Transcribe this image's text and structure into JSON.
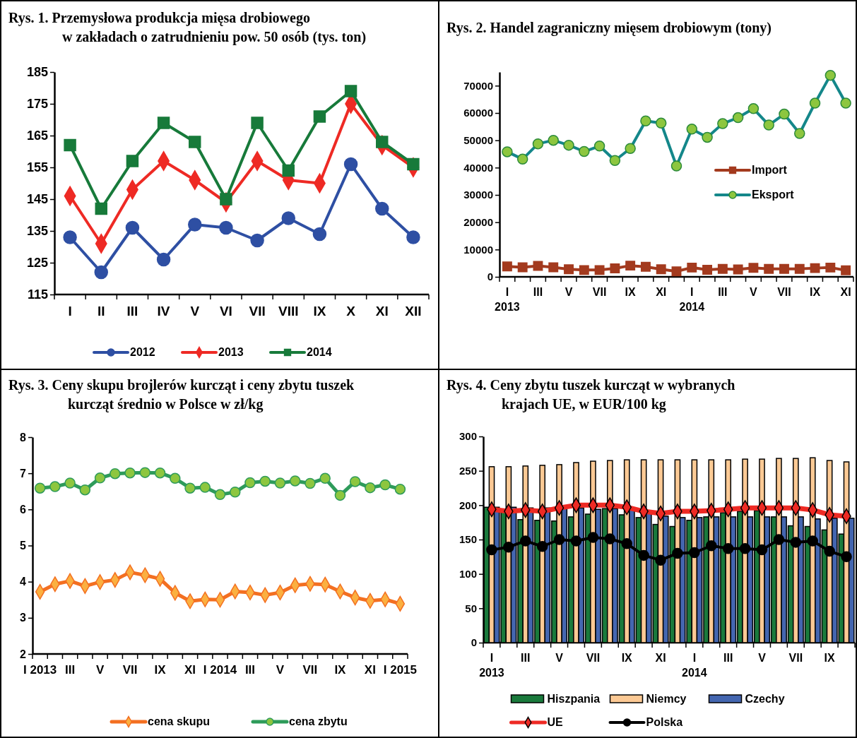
{
  "chart_data": [
    {
      "type": "line",
      "title": "Rys. 1. Przemysłowa produkcja mięsa drobiowego\nw zakładach o zatrudnieniu pow. 50 osób (tys. ton)",
      "categories": [
        "I",
        "II",
        "III",
        "IV",
        "V",
        "VI",
        "VII",
        "VIII",
        "IX",
        "X",
        "XI",
        "XII"
      ],
      "ylim": [
        115,
        185
      ],
      "yticks": [
        115,
        125,
        135,
        145,
        155,
        165,
        175,
        185
      ],
      "legend": "bottom",
      "series": [
        {
          "name": "2012",
          "color": "#2e4fa3",
          "marker": "circle",
          "values": [
            133,
            122,
            136,
            126,
            137,
            136,
            132,
            139,
            134,
            156,
            142,
            133
          ]
        },
        {
          "name": "2013",
          "color": "#ee2a24",
          "marker": "diamond",
          "values": [
            146,
            131,
            148,
            157,
            151,
            144,
            157,
            151,
            150,
            175,
            162,
            155
          ]
        },
        {
          "name": "2014",
          "color": "#177a3a",
          "marker": "square",
          "values": [
            162,
            142,
            157,
            169,
            163,
            145,
            169,
            154,
            171,
            179,
            163,
            156
          ]
        }
      ]
    },
    {
      "type": "line",
      "title": "Rys. 2. Handel zagraniczny mięsem drobiowym (tony)",
      "categories": [
        "I\n2013",
        null,
        "III",
        null,
        "V",
        null,
        "VII",
        null,
        "IX",
        null,
        "XI",
        null,
        "I\n2014",
        null,
        "III",
        null,
        "V",
        null,
        "VII",
        null,
        "IX",
        null,
        "XI"
      ],
      "ylim": [
        0,
        75000
      ],
      "yticks": [
        0,
        10000,
        20000,
        30000,
        40000,
        50000,
        60000,
        70000
      ],
      "legend": "right",
      "series": [
        {
          "name": "Import",
          "color": "#a33a1e",
          "marker": "square",
          "values": [
            3800,
            3500,
            4000,
            3500,
            2800,
            2500,
            2500,
            3100,
            4100,
            3700,
            2800,
            2000,
            3400,
            2600,
            2900,
            2700,
            3300,
            2900,
            2900,
            2900,
            3200,
            3400,
            2400
          ]
        },
        {
          "name": "Eksport",
          "color": "#14878a",
          "marker": "circle",
          "values": [
            45800,
            43100,
            48700,
            50000,
            48200,
            45900,
            47900,
            42600,
            47000,
            57100,
            56300,
            40600,
            54100,
            51100,
            56100,
            58300,
            61600,
            55600,
            59600,
            52500,
            63600,
            73800,
            63600
          ]
        }
      ]
    },
    {
      "type": "line",
      "title": "Rys. 3. Ceny skupu brojlerów kurcząt i ceny zbytu tuszek\nkurcząt średnio w Polsce w zł/kg",
      "categories": [
        "I 2013",
        null,
        "III",
        null,
        "V",
        null,
        "VII",
        null,
        "IX",
        null,
        "XI",
        null,
        "I 2014",
        null,
        "III",
        null,
        "V",
        null,
        "VII",
        null,
        "IX",
        null,
        "XI",
        null,
        "I 2015"
      ],
      "ylim": [
        2,
        8
      ],
      "yticks": [
        2,
        3,
        4,
        5,
        6,
        7,
        8
      ],
      "legend": "bottom",
      "series": [
        {
          "name": "cena skupu",
          "color": "#f36f21",
          "marker": "diamond",
          "values": [
            3.72,
            3.93,
            4.02,
            3.88,
            3.99,
            4.05,
            4.26,
            4.18,
            4.08,
            3.69,
            3.46,
            3.51,
            3.5,
            3.73,
            3.7,
            3.63,
            3.7,
            3.9,
            3.94,
            3.92,
            3.73,
            3.56,
            3.47,
            3.51,
            3.39
          ]
        },
        {
          "name": "cena zbytu",
          "color": "#2e9b5a",
          "marker": "circle",
          "values": [
            6.59,
            6.63,
            6.73,
            6.54,
            6.87,
            6.99,
            7.01,
            7.02,
            7.01,
            6.86,
            6.59,
            6.61,
            6.41,
            6.48,
            6.74,
            6.78,
            6.73,
            6.79,
            6.72,
            6.86,
            6.39,
            6.77,
            6.6,
            6.68,
            6.56
          ]
        }
      ]
    },
    {
      "type": "bar",
      "title": "Rys. 4. Ceny zbytu tuszek kurcząt w wybranych\nkrajach UE, w EUR/100 kg",
      "categories": [
        "I\n2013",
        null,
        "III",
        null,
        "V",
        null,
        "VII",
        null,
        "IX",
        null,
        "XI",
        null,
        "I\n2014",
        null,
        "III",
        null,
        "V",
        null,
        "VII",
        null,
        "IX",
        null
      ],
      "ylim": [
        0,
        300
      ],
      "yticks": [
        0,
        50,
        100,
        150,
        200,
        250,
        300
      ],
      "legend": "bottom",
      "series": [
        {
          "name": "Hiszpania",
          "color": "#1a7a3c",
          "values": [
            197,
            191,
            179,
            178,
            177,
            183,
            187,
            195,
            186,
            182,
            172,
            169,
            178,
            183,
            189,
            191,
            192,
            183,
            170,
            169,
            164,
            158
          ]
        },
        {
          "name": "Niemcy",
          "color": "#fcc994",
          "values": [
            256,
            256,
            257,
            258,
            259,
            262,
            264,
            265,
            266,
            266,
            266,
            266,
            266,
            266,
            266,
            267,
            267,
            268,
            268,
            269,
            265,
            263
          ]
        },
        {
          "name": "Czechy",
          "color": "#4466b0",
          "values": [
            197,
            197,
            196,
            196,
            196,
            196,
            194,
            195,
            196,
            190,
            184,
            182,
            182,
            183,
            183,
            183,
            183,
            183,
            183,
            180,
            181,
            181
          ]
        },
        {
          "name": "UE",
          "type": "line",
          "color": "#ee2a24",
          "marker": "diamond",
          "values": [
            194,
            191,
            193,
            191,
            196,
            200,
            200,
            200,
            197,
            191,
            188,
            191,
            191,
            192,
            194,
            196,
            196,
            196,
            196,
            193,
            186,
            184
          ]
        },
        {
          "name": "Polska",
          "type": "line",
          "color": "#000000",
          "marker": "circle",
          "values": [
            135,
            139,
            148,
            140,
            150,
            148,
            153,
            151,
            144,
            127,
            120,
            130,
            131,
            141,
            137,
            137,
            135,
            150,
            146,
            148,
            133,
            125
          ]
        }
      ]
    }
  ]
}
